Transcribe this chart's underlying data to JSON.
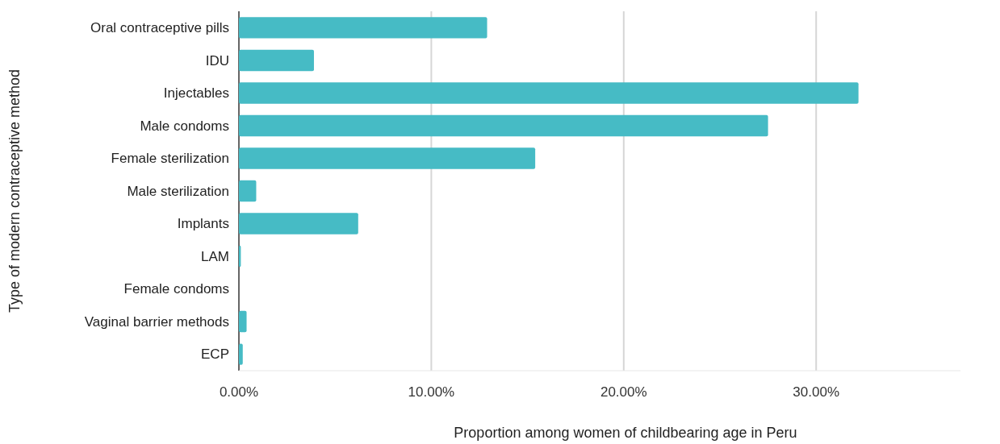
{
  "chart_data": {
    "type": "bar",
    "orientation": "horizontal",
    "xlabel": "Proportion among women of childbearing age in Peru",
    "ylabel": "Type of modern contraceptive method",
    "categories": [
      "Oral contraceptive pills",
      "IDU",
      "Injectables",
      "Male condoms",
      "Female sterilization",
      "Male sterilization",
      "Implants",
      "LAM",
      "Female condoms",
      "Vaginal barrier methods",
      "ECP"
    ],
    "values": [
      12.9,
      3.9,
      32.2,
      27.5,
      15.4,
      0.9,
      6.2,
      0.1,
      0,
      0.4,
      0.2
    ],
    "color": "#46bbc5",
    "xlim": [
      0,
      37.5
    ],
    "xticks": [
      {
        "value": 0,
        "label": "0.00%"
      },
      {
        "value": 10,
        "label": "10.00%"
      },
      {
        "value": 20,
        "label": "20.00%"
      },
      {
        "value": 30,
        "label": "30.00%"
      }
    ],
    "grid": "x"
  }
}
